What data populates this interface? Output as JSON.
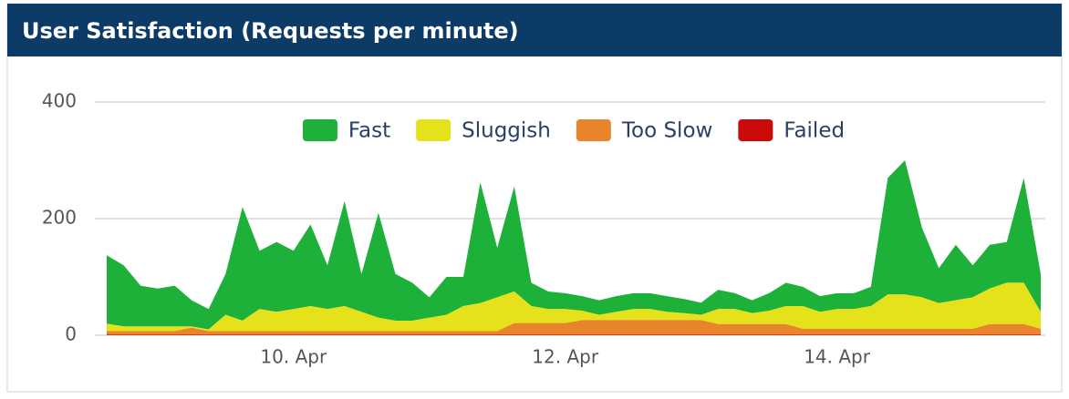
{
  "chart_data": {
    "type": "stacked_area",
    "title": "User Satisfaction (Requests per minute)",
    "categories": [
      null,
      null,
      null,
      null,
      null,
      null,
      null,
      null,
      null,
      null,
      null,
      "10. Apr",
      null,
      null,
      null,
      null,
      null,
      null,
      null,
      null,
      null,
      null,
      null,
      null,
      null,
      null,
      null,
      "12. Apr",
      null,
      null,
      null,
      null,
      null,
      null,
      null,
      null,
      null,
      null,
      null,
      null,
      null,
      null,
      null,
      "14. Apr",
      null,
      null,
      null,
      null,
      null,
      null,
      null,
      null,
      null,
      null,
      null,
      null
    ],
    "series": [
      {
        "name": "Fast",
        "color": "#1eb13a",
        "values": [
          117,
          105,
          70,
          65,
          70,
          45,
          35,
          70,
          195,
          100,
          120,
          100,
          140,
          75,
          180,
          65,
          180,
          80,
          65,
          35,
          65,
          50,
          207,
          85,
          180,
          40,
          30,
          27,
          25,
          25,
          27,
          27,
          27,
          27,
          24,
          21,
          33,
          27,
          22,
          30,
          40,
          33,
          27,
          27,
          27,
          33,
          200,
          230,
          120,
          60,
          95,
          55,
          75,
          70,
          180,
          65
        ]
      },
      {
        "name": "Sluggish",
        "color": "#e5e21b",
        "values": [
          13,
          8,
          8,
          8,
          8,
          2,
          3,
          28,
          18,
          38,
          33,
          38,
          43,
          38,
          43,
          33,
          23,
          18,
          18,
          23,
          28,
          43,
          48,
          58,
          54,
          29,
          24,
          24,
          16,
          9,
          14,
          19,
          19,
          14,
          12,
          9,
          26,
          26,
          19,
          23,
          31,
          39,
          29,
          34,
          34,
          39,
          59,
          59,
          54,
          44,
          49,
          54,
          61,
          71,
          71,
          29
        ]
      },
      {
        "name": "Too Slow",
        "color": "#e8852b",
        "values": [
          6,
          6,
          6,
          6,
          6,
          12,
          6,
          6,
          6,
          6,
          6,
          6,
          6,
          6,
          6,
          6,
          6,
          6,
          6,
          6,
          6,
          6,
          6,
          6,
          20,
          20,
          20,
          20,
          25,
          25,
          25,
          25,
          25,
          25,
          25,
          25,
          18,
          18,
          18,
          18,
          18,
          10,
          10,
          10,
          10,
          10,
          10,
          10,
          10,
          10,
          10,
          10,
          18,
          18,
          18,
          10
        ]
      },
      {
        "name": "Failed",
        "color": "#cc0a0a",
        "values": [
          1,
          1,
          1,
          1,
          1,
          1,
          1,
          1,
          1,
          1,
          1,
          1,
          1,
          1,
          1,
          1,
          1,
          1,
          1,
          1,
          1,
          1,
          1,
          1,
          1,
          1,
          1,
          1,
          1,
          1,
          1,
          1,
          1,
          1,
          1,
          1,
          1,
          1,
          1,
          1,
          1,
          1,
          1,
          1,
          1,
          1,
          1,
          1,
          1,
          1,
          1,
          1,
          1,
          1,
          1,
          1
        ]
      }
    ],
    "ylim": [
      0,
      400
    ],
    "yticks": [
      0,
      200,
      400
    ],
    "grid": true,
    "legend": "top"
  }
}
